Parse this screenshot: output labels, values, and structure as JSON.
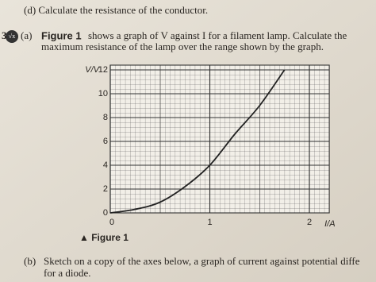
{
  "text": {
    "part_d": "(d) Calculate the resistance of the conductor.",
    "question_number": "3",
    "part_a_label": "(a)",
    "part_a_bold": "Figure 1",
    "part_a_line1": "shows a graph of V against I for a filament lamp. Calculate the",
    "part_a_line2": "maximum resistance of the lamp over the range shown by the graph.",
    "figure_caption": "▲ Figure 1",
    "part_b_label": "(b)",
    "part_b_line1": "Sketch on a copy of the axes below, a graph of current against potential diffe",
    "part_b_line2": "for a diode."
  },
  "chart_data": {
    "type": "line",
    "x_label": "I/A",
    "y_label": "V/V",
    "x": [
      0,
      0.25,
      0.5,
      0.75,
      1,
      1.25,
      1.5,
      1.75
    ],
    "series": [
      {
        "name": "V",
        "color": "#222222",
        "values": [
          0,
          0.3,
          0.9,
          2.2,
          4,
          6.6,
          9,
          12
        ]
      }
    ],
    "xlim": [
      0,
      2.2
    ],
    "ylim": [
      0,
      12.4
    ],
    "xticks": [
      0,
      1,
      2
    ],
    "yticks": [
      0,
      2,
      4,
      6,
      8,
      10,
      12
    ],
    "grid": true
  }
}
